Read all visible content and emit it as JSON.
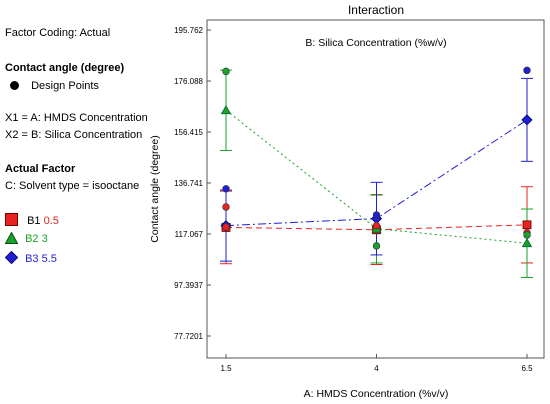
{
  "side_panel": {
    "factor_coding": "Factor Coding: Actual",
    "response_title": "Contact angle (degree)",
    "design_points_label": "Design Points",
    "x1": "X1 = A: HMDS Concentration",
    "x2": "X2 = B: Silica Concentration",
    "actual_factor_title": "Actual Factor",
    "actual_factor_value": "C: Solvent type = isooctane",
    "legend": [
      {
        "key": "B1",
        "value": "0.5",
        "color": "#e8231f",
        "marker": "square"
      },
      {
        "key": "B2",
        "value": "3",
        "color": "#1aa32a",
        "marker": "triangle"
      },
      {
        "key": "B3",
        "value": "5.5",
        "color": "#1f1fd6",
        "marker": "diamond"
      }
    ]
  },
  "chart_data": {
    "type": "line",
    "title": "Interaction",
    "subtitle": "B: Silica Concentration (%w/v)",
    "xlabel": "A: HMDS Concentration (%v/v)",
    "ylabel": "Contact angle (degree)",
    "x": [
      1.5,
      4,
      6.5
    ],
    "x_tick_labels": [
      "1.5",
      "4",
      "6.5"
    ],
    "ylim": [
      77.7201,
      195.762
    ],
    "y_tick_labels": [
      "77.7201",
      "97.3937",
      "117.067",
      "136.741",
      "156.415",
      "176.088",
      "195.762"
    ],
    "series": [
      {
        "name": "B1 0.5",
        "color": "#e8231f",
        "marker": "square",
        "dash": "6,4",
        "values": [
          119.6,
          118.7,
          120.6
        ],
        "ci_low": [
          105.6,
          105.3,
          105.9
        ],
        "ci_high": [
          133.6,
          132.1,
          135.3
        ]
      },
      {
        "name": "B2 3",
        "color": "#1aa32a",
        "marker": "triangle",
        "dash": "2,3",
        "values": [
          164.8,
          119.1,
          113.5
        ],
        "ci_low": [
          149.3,
          105.9,
          100.3
        ],
        "ci_high": [
          180.3,
          132.3,
          126.7
        ]
      },
      {
        "name": "B3 5.5",
        "color": "#1f1fd6",
        "marker": "diamond",
        "dash": "8,3,2,3",
        "values": [
          120.3,
          123.0,
          161.1
        ],
        "ci_low": [
          106.6,
          109.0,
          145.1
        ],
        "ci_high": [
          134.0,
          137.0,
          177.1
        ]
      }
    ],
    "design_points": [
      {
        "x": 1.5,
        "y": 127.5,
        "color": "#e8231f"
      },
      {
        "x": 1.5,
        "y": 119.8,
        "color": "#e8231f"
      },
      {
        "x": 1.5,
        "y": 179.8,
        "color": "#1aa32a"
      },
      {
        "x": 1.5,
        "y": 134.5,
        "color": "#1f1fd6"
      },
      {
        "x": 4,
        "y": 120.3,
        "color": "#e8231f"
      },
      {
        "x": 4,
        "y": 112.5,
        "color": "#1aa32a"
      },
      {
        "x": 4,
        "y": 124.4,
        "color": "#1f1fd6"
      },
      {
        "x": 6.5,
        "y": 117.5,
        "color": "#e8231f"
      },
      {
        "x": 6.5,
        "y": 116.7,
        "color": "#1aa32a"
      },
      {
        "x": 6.5,
        "y": 180.2,
        "color": "#1f1fd6"
      }
    ]
  }
}
